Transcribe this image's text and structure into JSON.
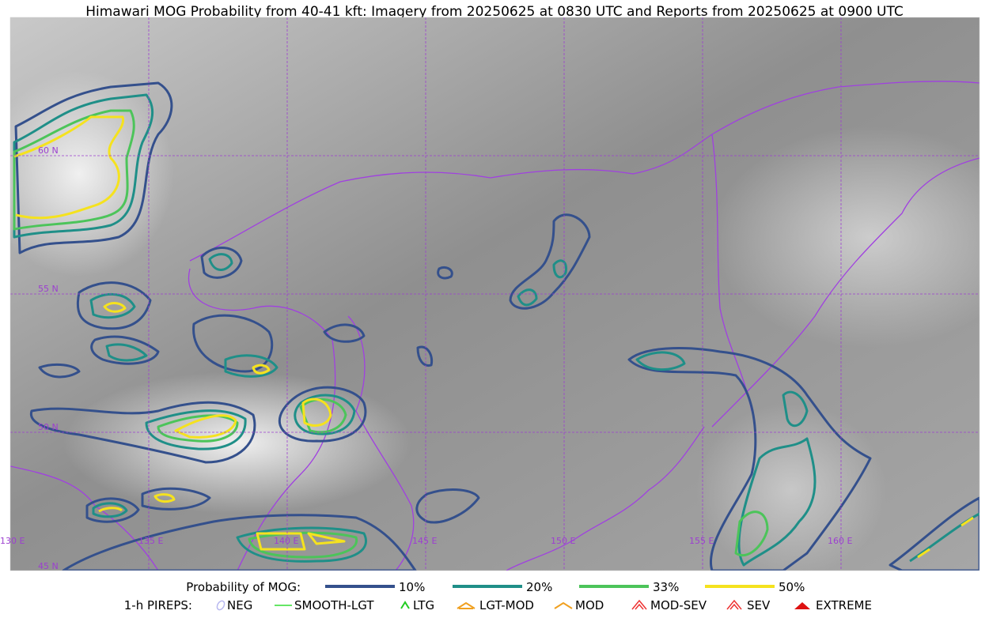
{
  "title": "Himawari MOG Probability from 40-41 kft: Imagery from 20250625 at 0830 UTC and Reports from 20250625 at 0900 UTC",
  "map": {
    "lat_labels": [
      "60 N",
      "55 N",
      "50 N",
      "45 N"
    ],
    "lon_labels": [
      "130 E",
      "135 E",
      "140 E",
      "145 E",
      "150 E",
      "155 E",
      "160 E"
    ]
  },
  "legend": {
    "probability": {
      "title": "Probability of MOG:",
      "items": [
        {
          "label": "10%",
          "color": "#34508c"
        },
        {
          "label": "20%",
          "color": "#1f8f88"
        },
        {
          "label": "33%",
          "color": "#4cc45a"
        },
        {
          "label": "50%",
          "color": "#f5e21e"
        }
      ]
    },
    "pireps": {
      "title": "1-h PIREPS:",
      "items": [
        "NEG",
        "SMOOTH-LGT",
        "LTG",
        "LGT-MOD",
        "MOD",
        "MOD-SEV",
        "SEV",
        "EXTREME"
      ]
    }
  }
}
